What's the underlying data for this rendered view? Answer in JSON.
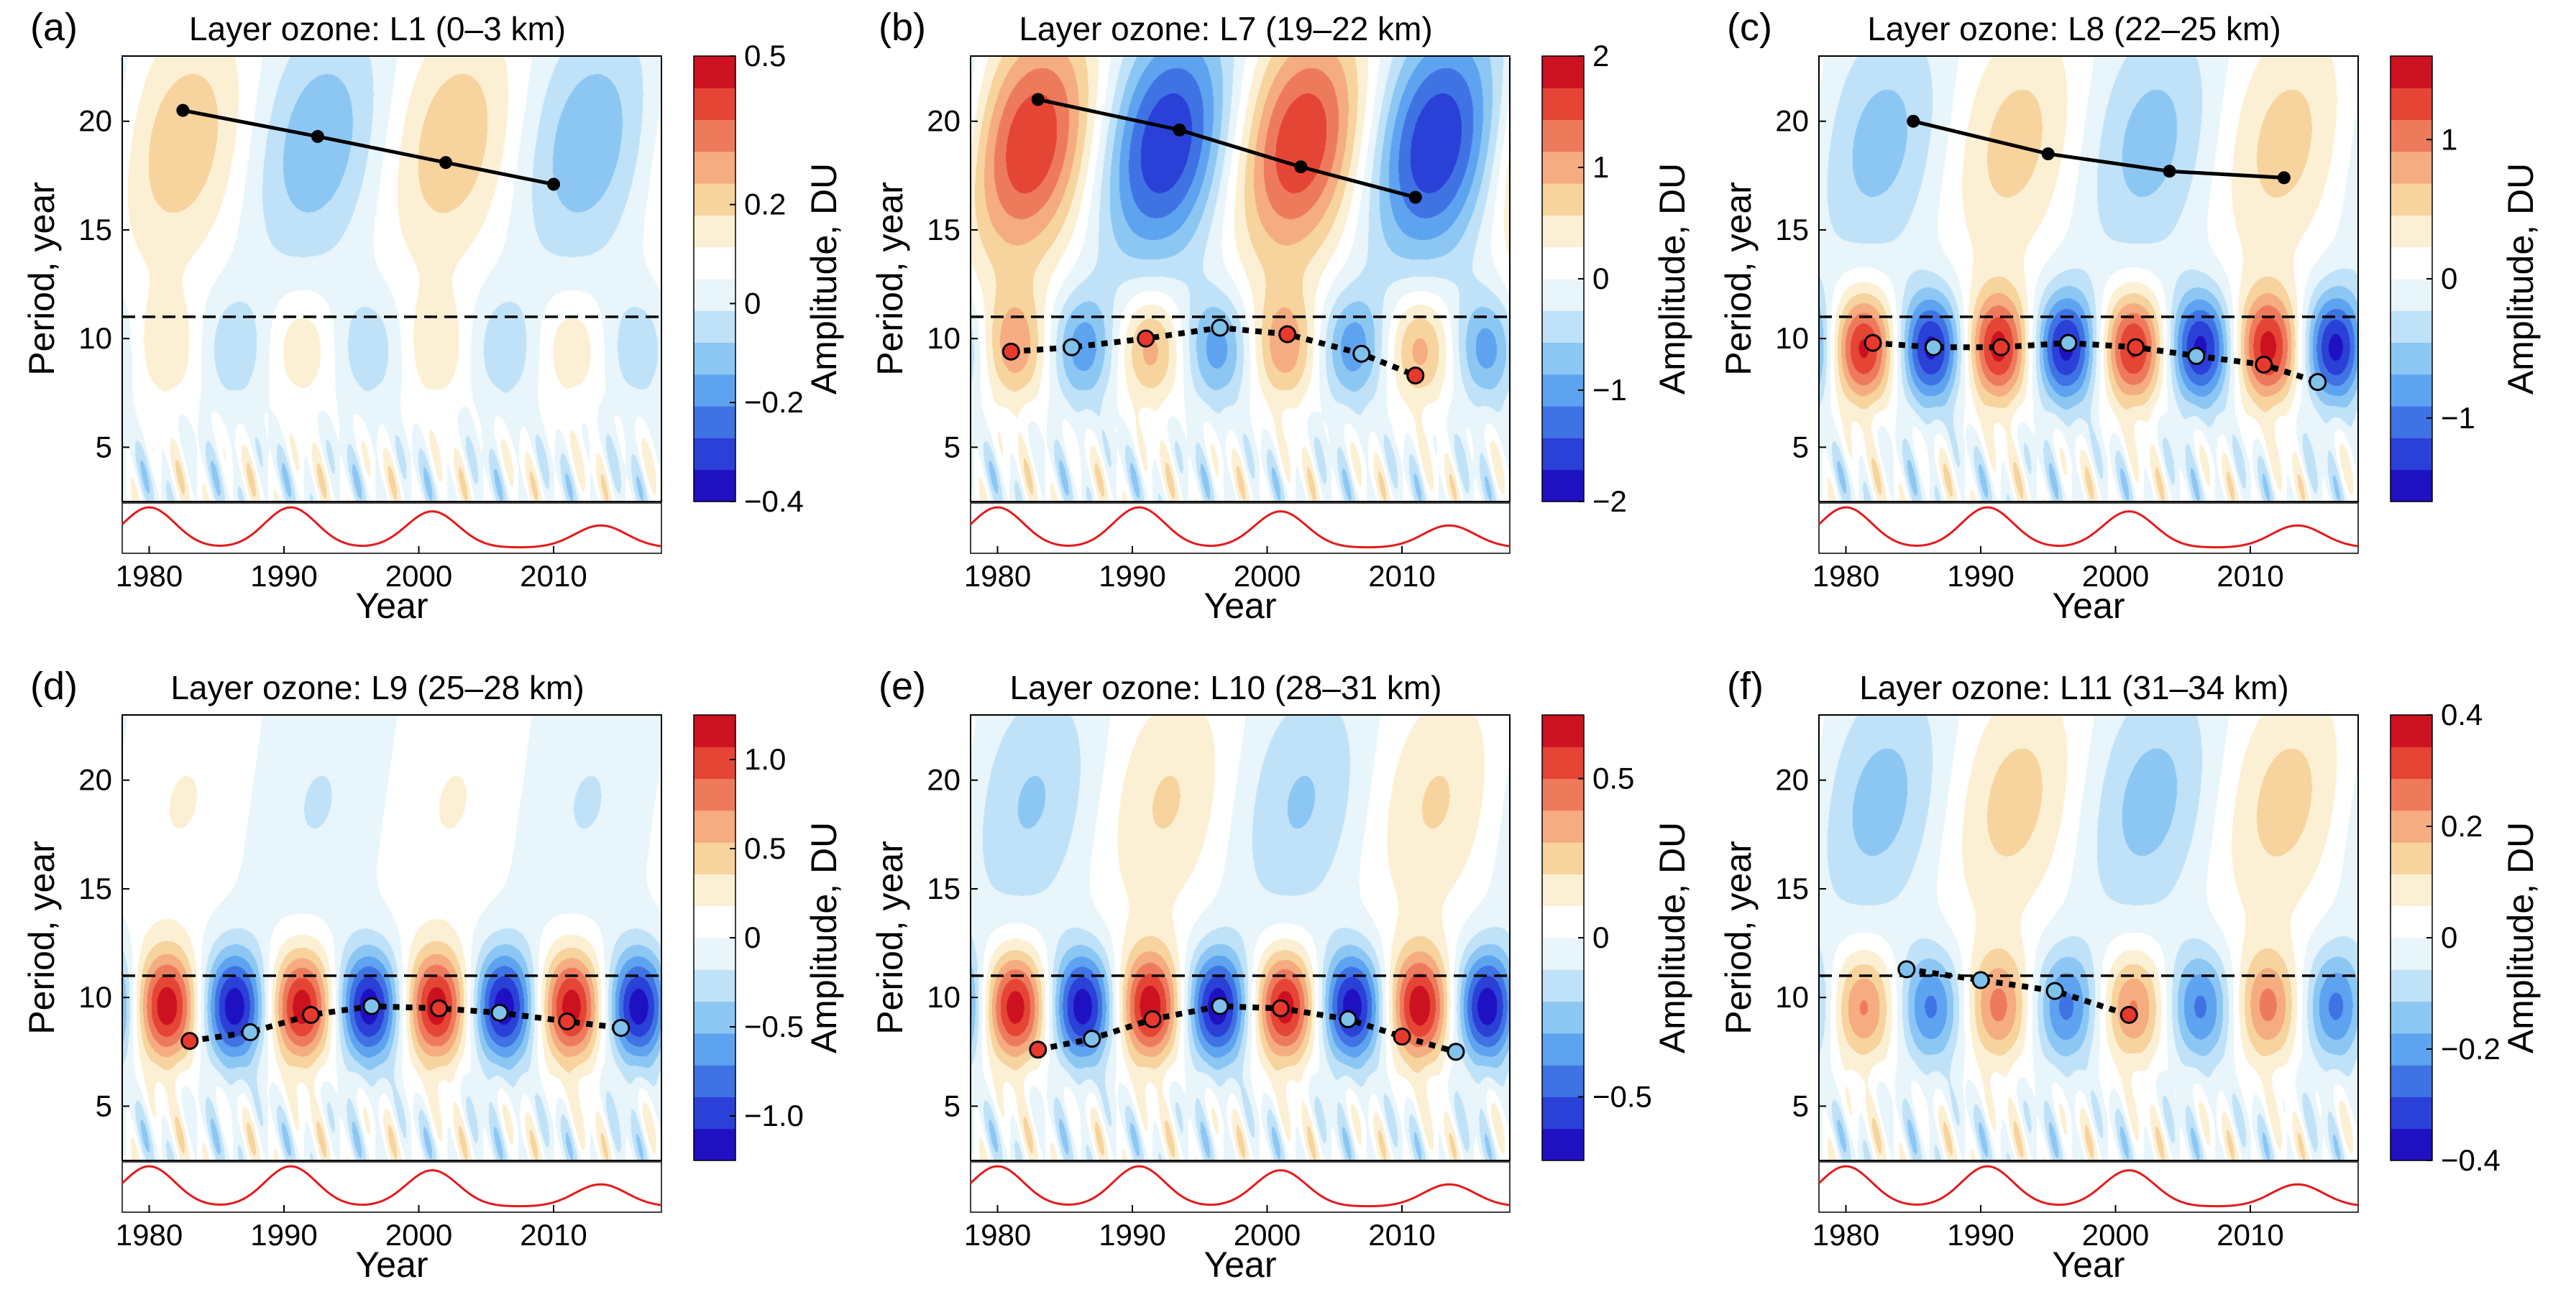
{
  "figure": {
    "colors": {
      "positive_peak": "#c00010",
      "negative_peak": "#1a18c8",
      "neutral": "#ffffff",
      "dashed_line": "#000000",
      "sunspot_curve": "#e41a1c",
      "marker_red": "#e8392d",
      "marker_blue": "#7fc3ec"
    },
    "colormap": [
      "#1f10c2",
      "#2a40d6",
      "#3f73e4",
      "#5ea3ef",
      "#8cc7f4",
      "#bfe2f8",
      "#e8f5fb",
      "#ffffff",
      "#fcf0d4",
      "#f7d39e",
      "#f4ac80",
      "#ee7a5c",
      "#e54535",
      "#cc1120"
    ]
  },
  "chart_data": [
    {
      "type": "heatmap",
      "panel_label": "(a)",
      "title": "Layer ozone: L1 (0–3 km)",
      "xlabel": "Year",
      "ylabel": "Period, year",
      "colorbar_label": "Amplitude, DU",
      "xlim": [
        1978,
        2018
      ],
      "ylim": [
        2.5,
        23
      ],
      "xticks": [
        1980,
        1990,
        2000,
        2010
      ],
      "yticks": [
        5,
        10,
        15,
        20
      ],
      "cb_range": [
        -0.4,
        0.5
      ],
      "cb_ticks": [
        {
          "v": 0.5,
          "t": "0.5"
        },
        {
          "v": 0.2,
          "t": "0.2"
        },
        {
          "v": 0,
          "t": "0"
        },
        {
          "v": -0.2,
          "t": "−0.2"
        },
        {
          "v": -0.4,
          "t": "−0.4"
        }
      ],
      "dashed_period": 11,
      "solid_series": [
        {
          "x": 1982.5,
          "y": 20.5
        },
        {
          "x": 1992.5,
          "y": 19.3
        },
        {
          "x": 2002,
          "y": 18.1
        },
        {
          "x": 2010,
          "y": 17.1
        }
      ],
      "dotted_series": [],
      "low_amp": 0.25,
      "high_amp": 0.4,
      "high_sign": 1
    },
    {
      "type": "heatmap",
      "panel_label": "(b)",
      "title": "Layer ozone: L7 (19–22 km)",
      "xlabel": "Year",
      "ylabel": "Period, year",
      "colorbar_label": "Amplitude, DU",
      "xlim": [
        1978,
        2018
      ],
      "ylim": [
        2.5,
        23
      ],
      "xticks": [
        1980,
        1990,
        2000,
        2010
      ],
      "yticks": [
        5,
        10,
        15,
        20
      ],
      "cb_range": [
        -2,
        2
      ],
      "cb_ticks": [
        {
          "v": 2,
          "t": "2"
        },
        {
          "v": 1,
          "t": "1"
        },
        {
          "v": 0,
          "t": "0"
        },
        {
          "v": -1,
          "t": "−1"
        },
        {
          "v": -2,
          "t": "−2"
        }
      ],
      "dashed_period": 11,
      "solid_series": [
        {
          "x": 1983,
          "y": 21
        },
        {
          "x": 1993.5,
          "y": 19.6
        },
        {
          "x": 2002.5,
          "y": 17.9
        },
        {
          "x": 2011,
          "y": 16.5
        }
      ],
      "dotted_series": [
        {
          "x": 1981,
          "y": 9.4,
          "c": "red"
        },
        {
          "x": 1985.5,
          "y": 9.6,
          "c": "blue"
        },
        {
          "x": 1991,
          "y": 10,
          "c": "red"
        },
        {
          "x": 1996.5,
          "y": 10.5,
          "c": "blue"
        },
        {
          "x": 2001.5,
          "y": 10.2,
          "c": "red"
        },
        {
          "x": 2007,
          "y": 9.3,
          "c": "blue"
        },
        {
          "x": 2011,
          "y": 8.3,
          "c": "red"
        }
      ],
      "low_amp": 0.5,
      "high_amp": 0.85,
      "high_sign": 1
    },
    {
      "type": "heatmap",
      "panel_label": "(c)",
      "title": "Layer ozone: L8 (22–25 km)",
      "xlabel": "Year",
      "ylabel": "Period, year",
      "colorbar_label": "Amplitude, DU",
      "xlim": [
        1978,
        2018
      ],
      "ylim": [
        2.5,
        23
      ],
      "xticks": [
        1980,
        1990,
        2000,
        2010
      ],
      "yticks": [
        5,
        10,
        15,
        20
      ],
      "cb_range": [
        -1.6,
        1.6
      ],
      "cb_ticks": [
        {
          "v": 1,
          "t": "1"
        },
        {
          "v": 0,
          "t": "0"
        },
        {
          "v": -1,
          "t": "−1"
        }
      ],
      "dashed_period": 11,
      "solid_series": [
        {
          "x": 1985,
          "y": 20
        },
        {
          "x": 1995,
          "y": 18.5
        },
        {
          "x": 2004,
          "y": 17.7
        },
        {
          "x": 2012.5,
          "y": 17.4
        }
      ],
      "dotted_series": [
        {
          "x": 1982,
          "y": 9.8,
          "c": "red"
        },
        {
          "x": 1986.5,
          "y": 9.6,
          "c": "blue"
        },
        {
          "x": 1991.5,
          "y": 9.6,
          "c": "red"
        },
        {
          "x": 1996.5,
          "y": 9.8,
          "c": "blue"
        },
        {
          "x": 2001.5,
          "y": 9.6,
          "c": "red"
        },
        {
          "x": 2006,
          "y": 9.2,
          "c": "blue"
        },
        {
          "x": 2011,
          "y": 8.8,
          "c": "red"
        },
        {
          "x": 2015,
          "y": 8,
          "c": "blue"
        }
      ],
      "low_amp": 0.9,
      "high_amp": 0.35,
      "high_sign": -1
    },
    {
      "type": "heatmap",
      "panel_label": "(d)",
      "title": "Layer ozone: L9 (25–28 km)",
      "xlabel": "Year",
      "ylabel": "Period, year",
      "colorbar_label": "Amplitude, DU",
      "xlim": [
        1978,
        2018
      ],
      "ylim": [
        2.5,
        23
      ],
      "xticks": [
        1980,
        1990,
        2000,
        2010
      ],
      "yticks": [
        5,
        10,
        15,
        20
      ],
      "cb_range": [
        -1.25,
        1.25
      ],
      "cb_ticks": [
        {
          "v": 1.0,
          "t": "1.0"
        },
        {
          "v": 0.5,
          "t": "0.5"
        },
        {
          "v": 0,
          "t": "0"
        },
        {
          "v": -0.5,
          "t": "−0.5"
        },
        {
          "v": -1.0,
          "t": "−1.0"
        }
      ],
      "dashed_period": 11,
      "solid_series": [],
      "dotted_series": [
        {
          "x": 1983,
          "y": 8,
          "c": "red"
        },
        {
          "x": 1987.5,
          "y": 8.4,
          "c": "blue"
        },
        {
          "x": 1992,
          "y": 9.2,
          "c": "red"
        },
        {
          "x": 1996.5,
          "y": 9.6,
          "c": "blue"
        },
        {
          "x": 2001.5,
          "y": 9.5,
          "c": "red"
        },
        {
          "x": 2006,
          "y": 9.3,
          "c": "blue"
        },
        {
          "x": 2011,
          "y": 8.9,
          "c": "red"
        },
        {
          "x": 2015,
          "y": 8.6,
          "c": "blue"
        }
      ],
      "low_amp": 0.95,
      "high_amp": 0.15,
      "high_sign": 1
    },
    {
      "type": "heatmap",
      "panel_label": "(e)",
      "title": "Layer ozone: L10 (28–31 km)",
      "xlabel": "Year",
      "ylabel": "Period, year",
      "colorbar_label": "Amplitude, DU",
      "xlim": [
        1978,
        2018
      ],
      "ylim": [
        2.5,
        23
      ],
      "xticks": [
        1980,
        1990,
        2000,
        2010
      ],
      "yticks": [
        5,
        10,
        15,
        20
      ],
      "cb_range": [
        -0.7,
        0.7
      ],
      "cb_ticks": [
        {
          "v": 0.5,
          "t": "0.5"
        },
        {
          "v": 0,
          "t": "0"
        },
        {
          "v": -0.5,
          "t": "−0.5"
        }
      ],
      "dashed_period": 11,
      "solid_series": [],
      "dotted_series": [
        {
          "x": 1983,
          "y": 7.6,
          "c": "red"
        },
        {
          "x": 1987,
          "y": 8.1,
          "c": "blue"
        },
        {
          "x": 1991.5,
          "y": 9,
          "c": "red"
        },
        {
          "x": 1996.5,
          "y": 9.6,
          "c": "blue"
        },
        {
          "x": 2001,
          "y": 9.5,
          "c": "red"
        },
        {
          "x": 2006,
          "y": 9,
          "c": "blue"
        },
        {
          "x": 2010,
          "y": 8.2,
          "c": "red"
        },
        {
          "x": 2014,
          "y": 7.5,
          "c": "blue"
        }
      ],
      "low_amp": 0.95,
      "high_amp": 0.3,
      "high_sign": -1
    },
    {
      "type": "heatmap",
      "panel_label": "(f)",
      "title": "Layer ozone: L11 (31–34 km)",
      "xlabel": "Year",
      "ylabel": "Period, year",
      "colorbar_label": "Amplitude, DU",
      "xlim": [
        1978,
        2018
      ],
      "ylim": [
        2.5,
        23
      ],
      "xticks": [
        1980,
        1990,
        2000,
        2010
      ],
      "yticks": [
        5,
        10,
        15,
        20
      ],
      "cb_range": [
        -0.4,
        0.4
      ],
      "cb_ticks": [
        {
          "v": 0.4,
          "t": "0.4"
        },
        {
          "v": 0.2,
          "t": "0.2"
        },
        {
          "v": 0,
          "t": "0"
        },
        {
          "v": -0.2,
          "t": "−0.2"
        },
        {
          "v": -0.4,
          "t": "−0.4"
        }
      ],
      "dashed_period": 11,
      "solid_series": [],
      "dotted_series": [
        {
          "x": 1984.5,
          "y": 11.3,
          "c": "blue"
        },
        {
          "x": 1990,
          "y": 10.8,
          "c": "blue"
        },
        {
          "x": 1995.5,
          "y": 10.3,
          "c": "blue"
        },
        {
          "x": 2001,
          "y": 9.2,
          "c": "red"
        }
      ],
      "low_amp": 0.6,
      "high_amp": 0.35,
      "high_sign": -1
    }
  ]
}
